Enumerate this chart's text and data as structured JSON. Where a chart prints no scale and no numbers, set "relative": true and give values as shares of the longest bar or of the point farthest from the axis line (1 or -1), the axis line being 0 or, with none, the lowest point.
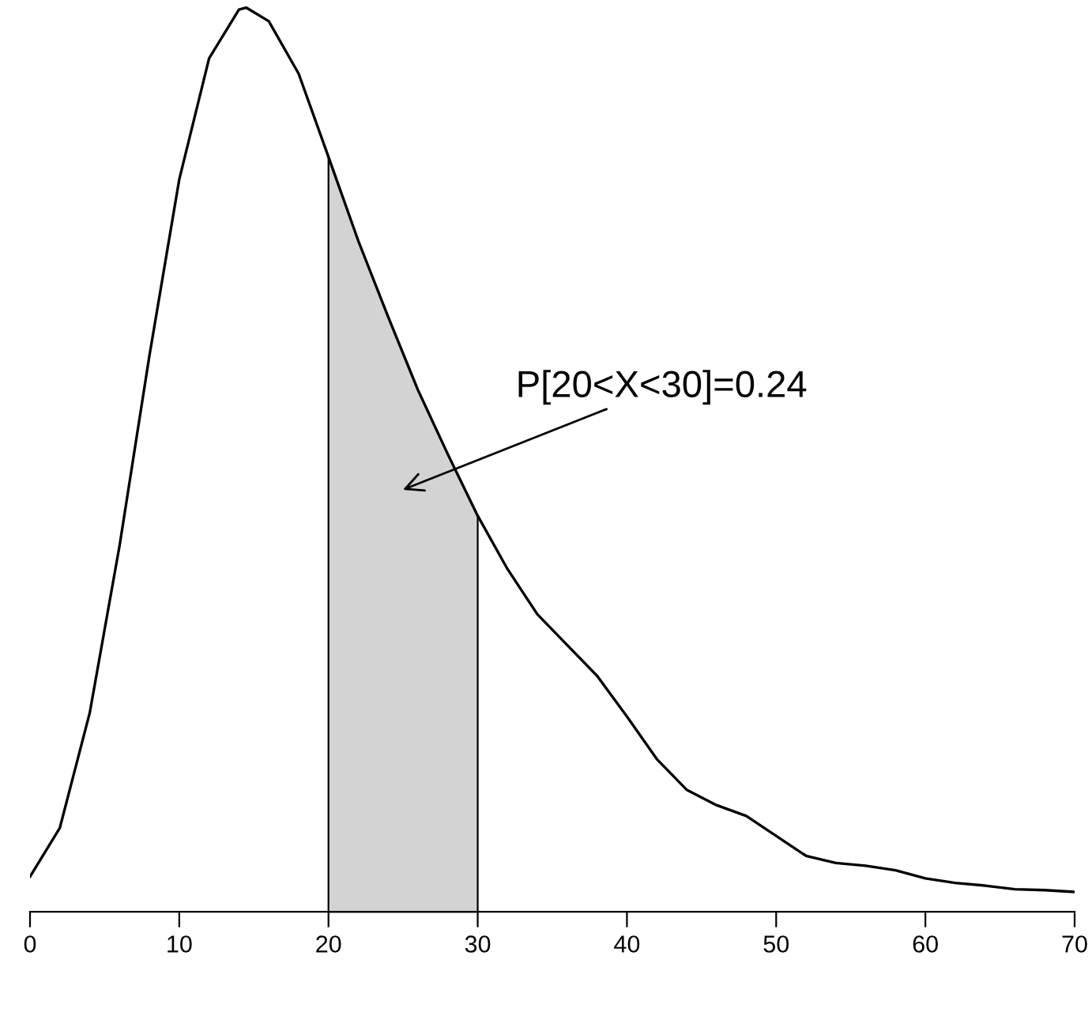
{
  "chart_data": {
    "type": "line",
    "relative": true,
    "x": [
      0,
      2,
      4,
      6,
      8,
      10,
      12,
      14,
      14.5,
      16,
      18,
      20,
      22,
      24,
      26,
      28,
      30,
      32,
      34,
      36,
      38,
      40,
      42,
      44,
      46,
      48,
      50,
      52,
      54,
      56,
      58,
      60,
      62,
      64,
      66,
      68,
      70
    ],
    "series": [
      {
        "color": "#000000",
        "values": [
          0.039,
          0.093,
          0.22,
          0.405,
          0.615,
          0.81,
          0.944,
          0.998,
          1,
          0.985,
          0.927,
          0.835,
          0.742,
          0.658,
          0.577,
          0.506,
          0.438,
          0.379,
          0.329,
          0.295,
          0.261,
          0.216,
          0.169,
          0.135,
          0.118,
          0.106,
          0.084,
          0.062,
          0.054,
          0.051,
          0.046,
          0.037,
          0.032,
          0.029,
          0.025,
          0.024,
          0.022
        ]
      },
      {
        "type": "area",
        "color": "#d3d3d3",
        "x": [
          20,
          22,
          24,
          26,
          28,
          30
        ],
        "values": [
          0.835,
          0.742,
          0.658,
          0.577,
          0.506,
          0.438
        ]
      }
    ],
    "xlim": [
      0,
      70
    ],
    "xticks": [
      0,
      10,
      20,
      30,
      40,
      50,
      60,
      70
    ],
    "annotations": [
      "P[20<X<30]=0.24"
    ],
    "grid": false,
    "legend": false,
    "marker": "none",
    "line_style": "solid"
  }
}
